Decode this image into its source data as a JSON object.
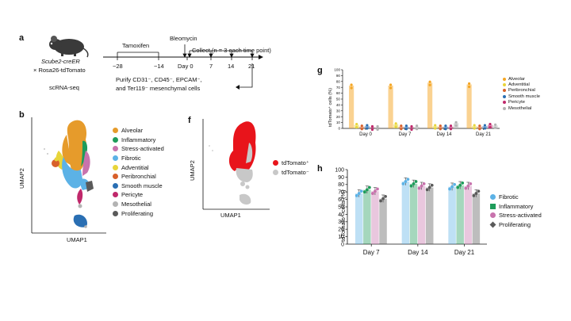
{
  "panel_a": {
    "letter": "a",
    "mouse_line1": "Scube2-creER",
    "mouse_line2": "× Rosa26-tdTomato",
    "tamoxifen": "Tamoxifen",
    "bleomycin": "Bleomycin",
    "collect": "Collect (n = 3 each time point)",
    "tick_labels": [
      "−28",
      "−14",
      "Day 0",
      "7",
      "14",
      "21"
    ],
    "purify_line1": "Purify CD31⁻, CD45⁻, EPCAM⁻,",
    "purify_line2": "and Ter119⁻ mesenchymal cells",
    "scrnaseq": "scRNA-seq"
  },
  "panel_b": {
    "letter": "b",
    "xlabel": "UMAP1",
    "ylabel": "UMAP2",
    "legend": [
      {
        "label": "Alveolar",
        "color": "#e69b2b"
      },
      {
        "label": "Inflammatory",
        "color": "#1e9c5a"
      },
      {
        "label": "Stress-activated",
        "color": "#c873ad"
      },
      {
        "label": "Fibrotic",
        "color": "#5cb2e6"
      },
      {
        "label": "Adventitial",
        "color": "#e8d53a"
      },
      {
        "label": "Peribronchial",
        "color": "#d8602a"
      },
      {
        "label": "Smooth muscle",
        "color": "#2a6fb3"
      },
      {
        "label": "Pericyte",
        "color": "#c0286b"
      },
      {
        "label": "Mesothelial",
        "color": "#b3b3b3"
      },
      {
        "label": "Proliferating",
        "color": "#5a5a5a"
      }
    ]
  },
  "panel_f": {
    "letter": "f",
    "xlabel": "UMAP1",
    "ylabel": "UMAP2",
    "legend": [
      {
        "label": "tdTomato⁺",
        "color": "#e8141b"
      },
      {
        "label": "tdTomato⁻",
        "color": "#c8c8c8"
      }
    ]
  },
  "panel_g": {
    "letter": "g",
    "ylabel": "tdTomato⁺ cells (%)",
    "legend_colors": [
      "#f5a623",
      "#e8d53a",
      "#d8602a",
      "#2a6fb3",
      "#c0286b",
      "#b3b3b3"
    ],
    "chart_data": {
      "type": "bar",
      "categories": [
        "Day 0",
        "Day 7",
        "Day 14",
        "Day 21"
      ],
      "series": [
        {
          "name": "Alveolar",
          "values": [
            73,
            73,
            78,
            75
          ]
        },
        {
          "name": "Adventitial",
          "values": [
            6,
            7,
            4,
            4
          ]
        },
        {
          "name": "Peribronchial",
          "values": [
            3,
            3,
            3,
            3
          ]
        },
        {
          "name": "Smooth muscle",
          "values": [
            4,
            3,
            3,
            4
          ]
        },
        {
          "name": "Pericyte",
          "values": [
            2,
            2,
            3,
            6
          ]
        },
        {
          "name": "Mesothelial",
          "values": [
            2,
            3,
            9,
            5
          ]
        }
      ],
      "ylim": [
        0,
        100
      ],
      "yticks": [
        "0",
        "10",
        "20",
        "30",
        "40",
        "50",
        "60",
        "70",
        "80",
        "90",
        "100"
      ]
    }
  },
  "panel_h": {
    "letter": "h",
    "ylabel": "tdTomato⁺ cells (%)",
    "chart_data": {
      "type": "bar",
      "categories": [
        "Day 7",
        "Day 14",
        "Day 21"
      ],
      "series": [
        {
          "name": "Fibrotic",
          "color": "#5cb2e6",
          "values": [
            68,
            84,
            77
          ]
        },
        {
          "name": "Inflammatory",
          "color": "#1e9c5a",
          "values": [
            73,
            81,
            79
          ]
        },
        {
          "name": "Stress-activated",
          "color": "#c873ad",
          "values": [
            71,
            78,
            78
          ]
        },
        {
          "name": "Proliferating",
          "color": "#5a5a5a",
          "values": [
            61,
            76,
            68
          ]
        }
      ],
      "ylim": [
        0,
        100
      ],
      "yticks": [
        "0",
        "10",
        "20",
        "30",
        "40",
        "50",
        "60",
        "70",
        "80",
        "90",
        "100"
      ]
    }
  }
}
